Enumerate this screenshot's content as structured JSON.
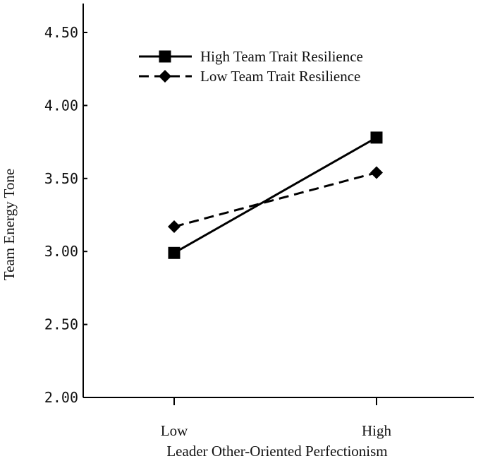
{
  "chart_data": {
    "type": "line",
    "categories": [
      "Low",
      "High"
    ],
    "series": [
      {
        "name": "High Team Trait Resilience",
        "values": [
          2.99,
          3.78
        ],
        "line_style": "solid",
        "marker": "square",
        "color": "#000000"
      },
      {
        "name": "Low Team Trait Resilience",
        "values": [
          3.17,
          3.54
        ],
        "line_style": "dashed",
        "marker": "diamond",
        "color": "#000000"
      }
    ],
    "xlabel": "Leader Other-Oriented Perfectionism",
    "ylabel": "Team Energy Tone",
    "ylim": [
      2.0,
      4.5
    ],
    "yticks": [
      "2.00",
      "2.50",
      "3.00",
      "3.50",
      "4.00",
      "4.50"
    ],
    "grid": false,
    "legend_position": "top"
  }
}
